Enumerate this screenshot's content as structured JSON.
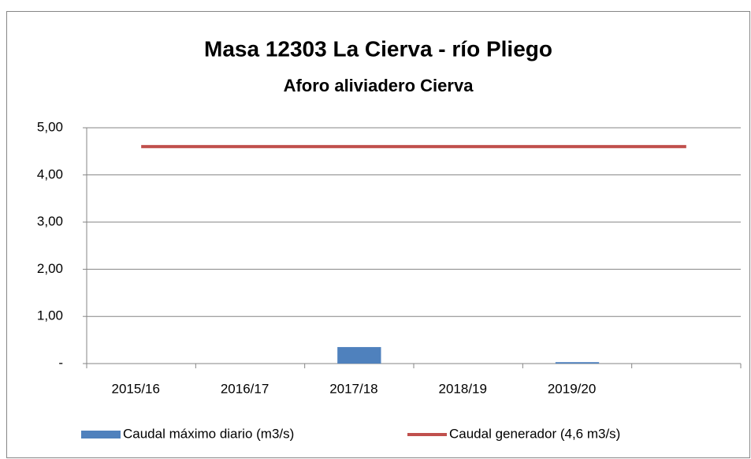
{
  "chart_data": {
    "type": "bar",
    "title": "Masa 12303 La Cierva - río Pliego",
    "subtitle": "Aforo aliviadero Cierva",
    "categories": [
      "2015/16",
      "2016/17",
      "2017/18",
      "2018/19",
      "2019/20",
      null
    ],
    "series": [
      {
        "name": "Caudal máximo diario (m3/s)",
        "type": "bar",
        "color": "#4f81bd",
        "values": [
          0,
          0,
          0.35,
          0,
          0.03,
          null
        ]
      },
      {
        "name": "Caudal generador (4,6 m3/s)",
        "type": "line",
        "color": "#c0504d",
        "values": [
          4.6,
          4.6,
          4.6,
          4.6,
          4.6,
          4.6
        ]
      }
    ],
    "ylim": [
      0,
      5
    ],
    "yticks": [
      {
        "value": 0,
        "label": "-"
      },
      {
        "value": 1,
        "label": "1,00"
      },
      {
        "value": 2,
        "label": "2,00"
      },
      {
        "value": 3,
        "label": "3,00"
      },
      {
        "value": 4,
        "label": "4,00"
      },
      {
        "value": 5,
        "label": "5,00"
      }
    ],
    "grid": true,
    "legend": "bottom"
  }
}
